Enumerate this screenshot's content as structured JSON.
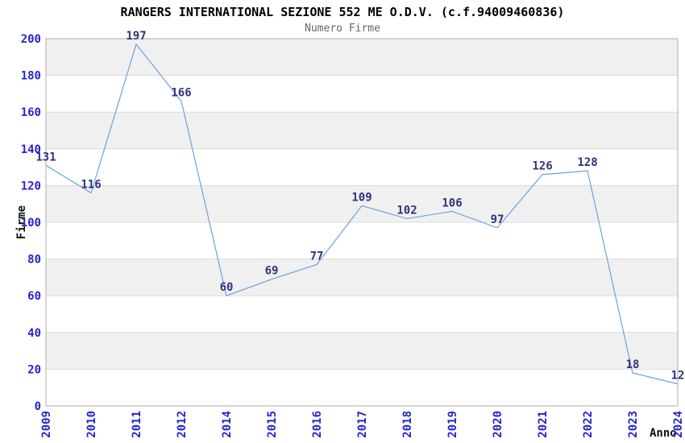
{
  "chart_data": {
    "type": "line",
    "title": "RANGERS INTERNATIONAL SEZIONE 552 ME O.D.V. (c.f.94009460836)",
    "subtitle": "Numero Firme",
    "xlabel": "Anno",
    "ylabel": "Firme",
    "categories": [
      "2009",
      "2010",
      "2011",
      "2012",
      "2014",
      "2015",
      "2016",
      "2017",
      "2018",
      "2019",
      "2020",
      "2021",
      "2022",
      "2023",
      "2024"
    ],
    "values": [
      131,
      116,
      197,
      166,
      60,
      69,
      77,
      109,
      102,
      106,
      97,
      126,
      128,
      18,
      12
    ],
    "ylim": [
      0,
      200
    ],
    "y_ticks": [
      0,
      20,
      40,
      60,
      80,
      100,
      120,
      140,
      160,
      180,
      200
    ],
    "grid": "horizontal gridlines every 20 with alternating gray bands",
    "legend_position": "none",
    "colors": {
      "line": "#69A3DE",
      "tick_label": "#2424CC",
      "value_label": "#32327E",
      "band": "#F0F0F0",
      "gridline": "#DCDCDC",
      "border": "#AFAFAF",
      "title": "#000000",
      "subtitle": "#666666"
    }
  }
}
